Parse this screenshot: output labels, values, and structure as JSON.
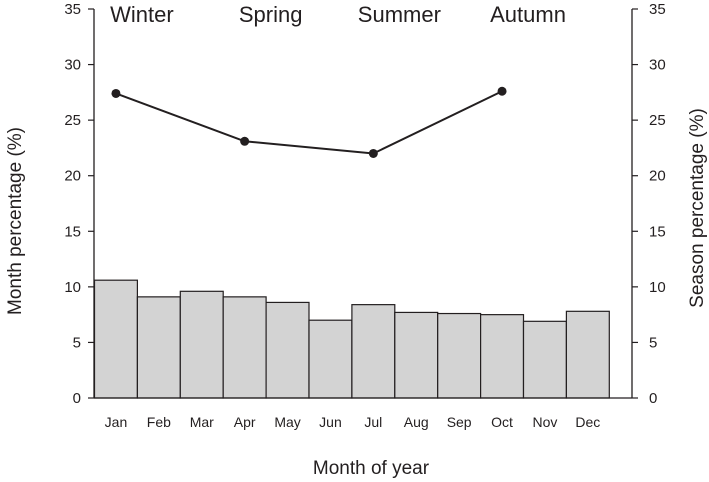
{
  "chart_data": {
    "type": "bar",
    "categories": [
      "Jan",
      "Feb",
      "Mar",
      "Apr",
      "May",
      "Jun",
      "Jul",
      "Aug",
      "Sep",
      "Oct",
      "Nov",
      "Dec"
    ],
    "series": [
      {
        "axis": "left",
        "type": "bar",
        "values": [
          10.6,
          9.1,
          9.6,
          9.1,
          8.6,
          7.0,
          8.4,
          7.7,
          7.6,
          7.5,
          6.9,
          7.8
        ]
      },
      {
        "axis": "right",
        "type": "line",
        "points": [
          {
            "season": "Winter",
            "x": "Jan",
            "y": 27.4
          },
          {
            "season": "Spring",
            "x": "Apr",
            "y": 23.1
          },
          {
            "season": "Summer",
            "x": "Jul",
            "y": 22.0
          },
          {
            "season": "Autumn",
            "x": "Oct",
            "y": 27.6
          }
        ]
      }
    ],
    "season_labels": [
      "Winter",
      "Spring",
      "Summer",
      "Autumn"
    ],
    "xlabel": "Month of year",
    "ylabel": "Month percentage (%)",
    "ylabel_right": "Season  percentage (%)",
    "ylim": [
      0,
      35
    ],
    "yticks": [
      0,
      5,
      10,
      15,
      20,
      25,
      30,
      35
    ],
    "grid": false,
    "colors": {
      "bar_fill": "#d3d3d3",
      "bar_stroke": "#231f20",
      "line": "#231f20",
      "marker": "#231f20",
      "axis": "#231f20"
    }
  }
}
